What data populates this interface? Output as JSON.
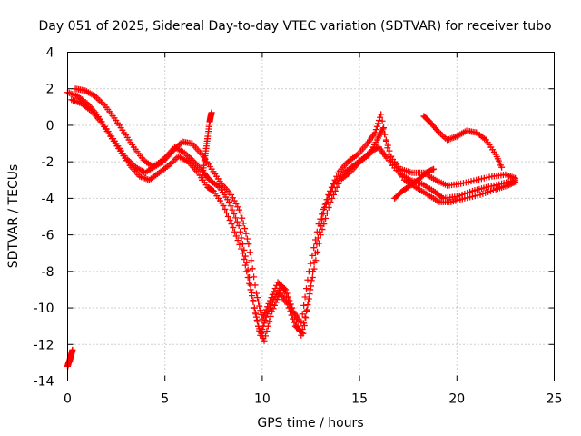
{
  "chart_data": {
    "type": "scatter",
    "title": "Day 051 of 2025, Sidereal Day-to-day VTEC variation (SDTVAR) for receiver tubo",
    "xlabel": "GPS time / hours",
    "ylabel": "SDTVAR / TECUs",
    "xlim": [
      0,
      25
    ],
    "ylim": [
      -14,
      4
    ],
    "xticks": [
      0,
      5,
      10,
      15,
      20,
      25
    ],
    "yticks": [
      -14,
      -12,
      -10,
      -8,
      -6,
      -4,
      -2,
      0,
      2,
      4
    ],
    "grid": true,
    "marker": "+",
    "color": "#ff0000",
    "series": [
      {
        "name": "track-1",
        "x": [
          0.0,
          0.5,
          1.0,
          1.5,
          2.0,
          2.5,
          3.0,
          3.5,
          4.0,
          4.5,
          5.0,
          5.5,
          6.0,
          6.5,
          7.0,
          7.3,
          7.8,
          8.3,
          8.8,
          9.2,
          9.6,
          9.9,
          10.2,
          10.6,
          11.0,
          11.5,
          12.0,
          12.4,
          12.8,
          13.2,
          13.7,
          14.2,
          14.7,
          15.2,
          15.6,
          16.0,
          16.4,
          17.0,
          17.6,
          18.2,
          18.8,
          19.3,
          20.0,
          20.8,
          21.5,
          22.3,
          23.0
        ],
        "y": [
          1.8,
          1.6,
          1.2,
          0.6,
          -0.2,
          -1.0,
          -1.8,
          -2.3,
          -2.6,
          -2.2,
          -1.8,
          -1.2,
          -1.5,
          -2.0,
          -2.6,
          -3.0,
          -3.4,
          -4.2,
          -5.5,
          -7.5,
          -10.0,
          -11.5,
          -10.5,
          -9.5,
          -8.8,
          -10.0,
          -11.5,
          -9.5,
          -6.5,
          -4.5,
          -3.2,
          -2.6,
          -2.2,
          -1.8,
          -1.4,
          -1.2,
          -1.8,
          -2.6,
          -3.0,
          -3.2,
          -3.6,
          -4.0,
          -3.9,
          -3.6,
          -3.4,
          -3.2,
          -3.0
        ]
      },
      {
        "name": "track-2",
        "x": [
          0.2,
          0.7,
          1.2,
          1.7,
          2.2,
          2.7,
          3.2,
          3.7,
          4.2,
          4.7,
          5.2,
          5.7,
          6.2,
          6.7,
          7.2,
          7.5,
          8.0,
          8.5,
          9.0,
          9.4,
          9.8,
          10.1,
          10.5,
          10.9,
          11.3,
          11.7,
          12.1,
          12.5,
          13.0,
          13.5,
          14.0,
          14.5,
          15.0,
          15.5,
          15.9,
          16.2,
          16.7,
          17.3,
          17.9,
          18.5,
          19.1,
          19.7,
          20.4,
          21.2,
          22.0,
          22.6,
          23.0
        ],
        "y": [
          1.4,
          1.2,
          0.8,
          0.2,
          -0.6,
          -1.4,
          -2.2,
          -2.8,
          -3.0,
          -2.6,
          -2.2,
          -1.7,
          -2.0,
          -2.6,
          -3.4,
          -3.6,
          -4.4,
          -5.6,
          -7.0,
          -9.0,
          -11.0,
          -11.8,
          -10.2,
          -9.2,
          -9.8,
          -11.0,
          -11.4,
          -8.8,
          -6.0,
          -4.2,
          -3.0,
          -2.6,
          -2.0,
          -1.6,
          -0.8,
          -0.2,
          -2.0,
          -3.0,
          -3.4,
          -3.8,
          -4.2,
          -4.2,
          -4.0,
          -3.8,
          -3.5,
          -3.3,
          -3.1
        ]
      },
      {
        "name": "track-3",
        "x": [
          0.4,
          0.9,
          1.4,
          1.9,
          2.4,
          2.9,
          3.4,
          3.9,
          4.4,
          4.9,
          5.4,
          5.9,
          6.4,
          6.9,
          7.4,
          7.9,
          8.4,
          8.9,
          9.3,
          9.7,
          10.0,
          10.4,
          10.8,
          11.2,
          11.6,
          12.0,
          12.4,
          12.9,
          13.4,
          13.9,
          14.4,
          14.9,
          15.4,
          15.8,
          16.1,
          16.5,
          17.1,
          17.7,
          18.3,
          18.9,
          19.5,
          20.2,
          21.0,
          21.8,
          22.5,
          23.0
        ],
        "y": [
          2.0,
          1.9,
          1.6,
          1.1,
          0.4,
          -0.4,
          -1.2,
          -1.9,
          -2.3,
          -2.0,
          -1.4,
          -0.9,
          -1.0,
          -1.6,
          -2.4,
          -3.2,
          -3.8,
          -4.8,
          -6.5,
          -9.2,
          -10.6,
          -9.6,
          -8.6,
          -9.0,
          -10.2,
          -10.8,
          -8.0,
          -5.4,
          -3.8,
          -2.6,
          -2.0,
          -1.6,
          -1.0,
          -0.4,
          0.6,
          -1.6,
          -2.4,
          -2.6,
          -2.6,
          -3.0,
          -3.3,
          -3.2,
          -3.0,
          -2.8,
          -2.7,
          -2.9
        ]
      },
      {
        "name": "track-4",
        "x": [
          18.3,
          18.6,
          19.0,
          19.5,
          20.0,
          20.5,
          21.0,
          21.5,
          22.0,
          22.3
        ],
        "y": [
          0.5,
          0.2,
          -0.3,
          -0.8,
          -0.6,
          -0.3,
          -0.4,
          -0.8,
          -1.6,
          -2.3
        ]
      },
      {
        "name": "track-5",
        "x": [
          16.8,
          17.2,
          17.6,
          18.0,
          18.4,
          18.8
        ],
        "y": [
          -4.0,
          -3.6,
          -3.3,
          -3.0,
          -2.6,
          -2.4
        ]
      },
      {
        "name": "track-6",
        "x": [
          0.0,
          0.05,
          0.1,
          0.15,
          0.2,
          0.25
        ],
        "y": [
          -13.2,
          -13.0,
          -12.9,
          -12.7,
          -12.5,
          -12.3
        ]
      },
      {
        "name": "spike-7h",
        "x": [
          6.9,
          7.0,
          7.1,
          7.2,
          7.3,
          7.35,
          7.4
        ],
        "y": [
          -3.0,
          -2.2,
          -1.4,
          -0.6,
          0.2,
          0.5,
          0.7
        ]
      }
    ]
  }
}
